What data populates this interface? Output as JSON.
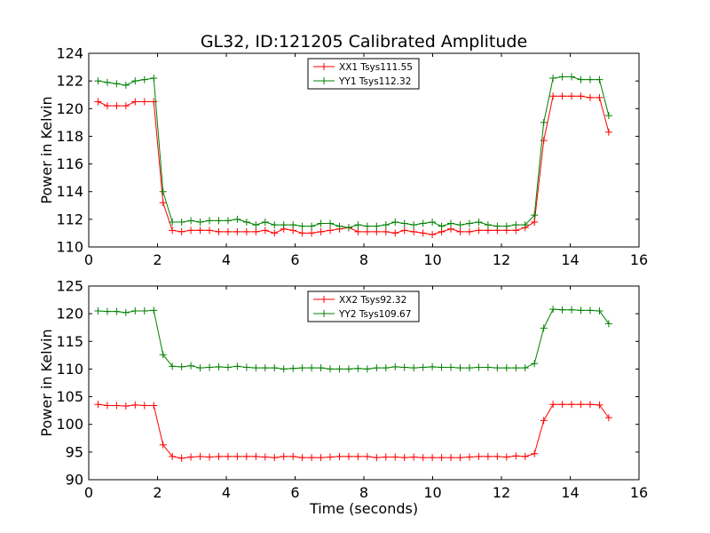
{
  "chart_data": [
    {
      "type": "line",
      "title": "GL32, ID:121205 Calibrated Amplitude",
      "xlabel": "",
      "ylabel": "Power in Kelvin",
      "xlim": [
        0,
        16
      ],
      "ylim": [
        110,
        124
      ],
      "xticks": [
        0,
        2,
        4,
        6,
        8,
        10,
        12,
        14,
        16
      ],
      "yticks": [
        110,
        112,
        114,
        116,
        118,
        120,
        122,
        124
      ],
      "grid": false,
      "legend_position": "top-center",
      "x": [
        0.27,
        0.54,
        0.81,
        1.08,
        1.35,
        1.62,
        1.89,
        2.16,
        2.43,
        2.7,
        2.97,
        3.24,
        3.51,
        3.78,
        4.05,
        4.32,
        4.59,
        4.86,
        5.13,
        5.4,
        5.67,
        5.94,
        6.21,
        6.48,
        6.75,
        7.02,
        7.29,
        7.56,
        7.83,
        8.1,
        8.37,
        8.64,
        8.91,
        9.18,
        9.45,
        9.72,
        9.99,
        10.26,
        10.53,
        10.8,
        11.07,
        11.34,
        11.61,
        11.88,
        12.15,
        12.42,
        12.69,
        12.96,
        13.23,
        13.5,
        13.77,
        14.04,
        14.31,
        14.58,
        14.85,
        15.12
      ],
      "series": [
        {
          "name": "XX1 Tsys111.55",
          "color": "#ff0000",
          "values": [
            120.5,
            120.2,
            120.2,
            120.2,
            120.5,
            120.5,
            120.5,
            113.2,
            111.2,
            111.1,
            111.2,
            111.2,
            111.2,
            111.1,
            111.1,
            111.1,
            111.1,
            111.1,
            111.2,
            111.0,
            111.3,
            111.2,
            111.0,
            111.0,
            111.1,
            111.2,
            111.3,
            111.4,
            111.1,
            111.1,
            111.1,
            111.1,
            111.0,
            111.2,
            111.1,
            111.0,
            110.9,
            111.1,
            111.3,
            111.1,
            111.1,
            111.2,
            111.2,
            111.2,
            111.2,
            111.2,
            111.4,
            111.8,
            117.7,
            120.9,
            120.9,
            120.9,
            120.9,
            120.8,
            120.8,
            118.3
          ]
        },
        {
          "name": "YY1 Tsys112.32",
          "color": "#008000",
          "values": [
            122.0,
            121.9,
            121.8,
            121.7,
            122.0,
            122.1,
            122.2,
            114.0,
            111.8,
            111.8,
            111.9,
            111.8,
            111.9,
            111.9,
            111.9,
            112.0,
            111.8,
            111.6,
            111.8,
            111.6,
            111.6,
            111.6,
            111.5,
            111.5,
            111.7,
            111.7,
            111.5,
            111.4,
            111.6,
            111.5,
            111.5,
            111.6,
            111.8,
            111.7,
            111.6,
            111.7,
            111.8,
            111.5,
            111.7,
            111.6,
            111.7,
            111.8,
            111.6,
            111.5,
            111.5,
            111.6,
            111.6,
            112.3,
            119.0,
            122.2,
            122.3,
            122.3,
            122.1,
            122.1,
            122.1,
            119.5
          ]
        }
      ]
    },
    {
      "type": "line",
      "title": "",
      "xlabel": "Time (seconds)",
      "ylabel": "Power in Kelvin",
      "xlim": [
        0,
        16
      ],
      "ylim": [
        90,
        125
      ],
      "xticks": [
        0,
        2,
        4,
        6,
        8,
        10,
        12,
        14,
        16
      ],
      "yticks": [
        90,
        95,
        100,
        105,
        110,
        115,
        120,
        125
      ],
      "grid": false,
      "legend_position": "top-center",
      "x": [
        0.27,
        0.54,
        0.81,
        1.08,
        1.35,
        1.62,
        1.89,
        2.16,
        2.43,
        2.7,
        2.97,
        3.24,
        3.51,
        3.78,
        4.05,
        4.32,
        4.59,
        4.86,
        5.13,
        5.4,
        5.67,
        5.94,
        6.21,
        6.48,
        6.75,
        7.02,
        7.29,
        7.56,
        7.83,
        8.1,
        8.37,
        8.64,
        8.91,
        9.18,
        9.45,
        9.72,
        9.99,
        10.26,
        10.53,
        10.8,
        11.07,
        11.34,
        11.61,
        11.88,
        12.15,
        12.42,
        12.69,
        12.96,
        13.23,
        13.5,
        13.77,
        14.04,
        14.31,
        14.58,
        14.85,
        15.12
      ],
      "series": [
        {
          "name": "XX2 Tsys92.32",
          "color": "#ff0000",
          "values": [
            103.6,
            103.4,
            103.4,
            103.3,
            103.5,
            103.4,
            103.4,
            96.3,
            94.2,
            93.9,
            94.1,
            94.2,
            94.1,
            94.2,
            94.2,
            94.2,
            94.2,
            94.2,
            94.1,
            94.0,
            94.2,
            94.2,
            94.0,
            94.0,
            94.0,
            94.1,
            94.2,
            94.2,
            94.2,
            94.2,
            94.0,
            94.1,
            94.1,
            94.0,
            94.1,
            94.0,
            94.0,
            94.0,
            94.0,
            94.0,
            94.1,
            94.2,
            94.2,
            94.2,
            94.1,
            94.3,
            94.2,
            94.7,
            100.7,
            103.6,
            103.6,
            103.6,
            103.6,
            103.6,
            103.5,
            101.2
          ]
        },
        {
          "name": "YY2 Tsys109.67",
          "color": "#008000",
          "values": [
            120.5,
            120.4,
            120.4,
            120.2,
            120.5,
            120.5,
            120.6,
            112.6,
            110.5,
            110.4,
            110.6,
            110.2,
            110.3,
            110.4,
            110.3,
            110.5,
            110.3,
            110.2,
            110.2,
            110.2,
            110.0,
            110.1,
            110.2,
            110.2,
            110.2,
            110.0,
            110.0,
            110.0,
            110.1,
            110.0,
            110.2,
            110.2,
            110.4,
            110.3,
            110.2,
            110.3,
            110.4,
            110.3,
            110.3,
            110.2,
            110.2,
            110.3,
            110.3,
            110.2,
            110.2,
            110.2,
            110.2,
            111.0,
            117.4,
            120.8,
            120.7,
            120.7,
            120.6,
            120.6,
            120.5,
            118.2
          ]
        }
      ]
    }
  ]
}
